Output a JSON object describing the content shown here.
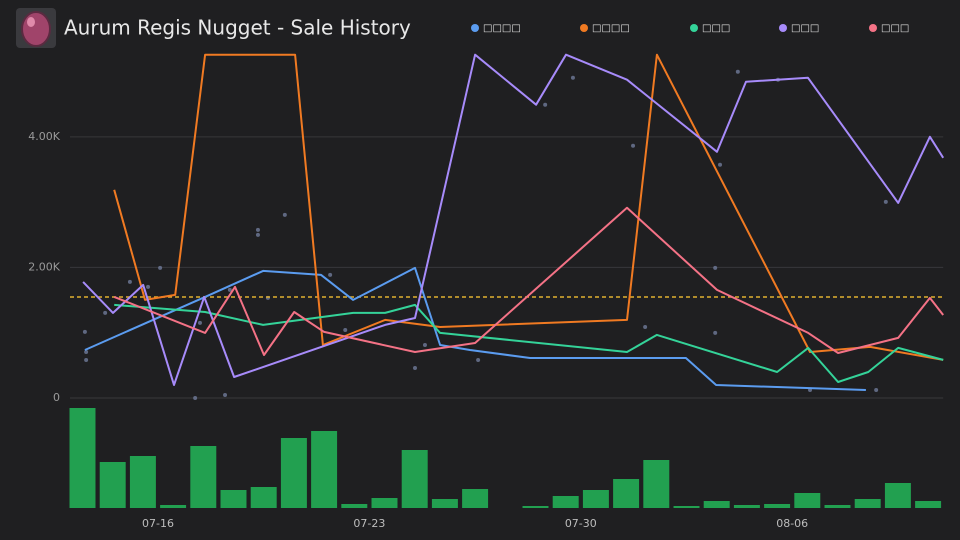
{
  "chart_data": {
    "type": "line",
    "title": "Aurum Regis Nugget - Sale History",
    "xlim": [
      0,
      29
    ],
    "xticks": [
      {
        "value": 3,
        "label": "07-16"
      },
      {
        "value": 10,
        "label": "07-23"
      },
      {
        "value": 17,
        "label": "07-30"
      },
      {
        "value": 24,
        "label": "08-06"
      }
    ],
    "ylim": [
      0,
      5300
    ],
    "yticks": [
      0,
      {
        "value": 2000,
        "label": "2.00K"
      },
      {
        "value": 4000,
        "label": "4.00K"
      }
    ],
    "grid": true,
    "series": [
      {
        "name": "□□□□",
        "color": "#5b9cf0",
        "x": [
          0.58,
          4.56,
          6.48,
          8.4,
          9.46,
          11.51,
          12.34,
          13.33,
          15.32,
          16.97,
          20.48,
          21.48,
          26.44
        ],
        "values": [
          736,
          1548,
          1947,
          1886,
          1502,
          1993,
          812,
          736,
          613,
          613,
          613,
          199,
          123
        ]
      },
      {
        "name": "□□□□",
        "color": "#f07a22",
        "x": [
          1.55,
          2.57,
          3.57,
          4.56,
          7.54,
          8.46,
          10.52,
          12.34,
          18.53,
          19.52,
          24.59,
          26.58,
          29
        ],
        "values": [
          3189,
          1502,
          1579,
          5258,
          5258,
          812,
          1196,
          1088,
          1196,
          5258,
          705,
          782,
          583
        ]
      },
      {
        "name": "□□□",
        "color": "#34d399",
        "x": [
          1.55,
          4.56,
          6.48,
          9.46,
          10.52,
          11.51,
          12.34,
          18.53,
          19.52,
          23.5,
          24.53,
          25.52,
          26.52,
          27.51,
          29
        ],
        "values": [
          1426,
          1318,
          1119,
          1303,
          1303,
          1426,
          997,
          705,
          966,
          399,
          767,
          245,
          399,
          767,
          583
        ]
      },
      {
        "name": "□□□",
        "color": "#a78bfa",
        "x": [
          0.52,
          1.51,
          2.51,
          3.53,
          4.53,
          5.52,
          10.52,
          11.51,
          13.5,
          15.52,
          16.51,
          18.53,
          21.51,
          22.47,
          24.52,
          27.51,
          28.56,
          29
        ],
        "values": [
          1778,
          1303,
          1732,
          199,
          1548,
          322,
          1119,
          1226,
          5258,
          4492,
          5258,
          4875,
          3771,
          4844,
          4906,
          2989,
          4001,
          3679
        ]
      },
      {
        "name": "□□□",
        "color": "#f47286",
        "x": [
          1.55,
          4.56,
          5.55,
          6.51,
          7.51,
          8.5,
          11.51,
          13.5,
          18.53,
          21.51,
          24.53,
          25.52,
          27.51,
          28.56,
          29
        ],
        "values": [
          1548,
          997,
          1702,
          659,
          1318,
          1012,
          705,
          843,
          2913,
          1656,
          997,
          690,
          920,
          1533,
          1272
        ]
      }
    ],
    "points": {
      "color": "#6f7a9a",
      "x": [
        0.58,
        0.62,
        0.62,
        1.25,
        2.07,
        2.67,
        3.07,
        4.23,
        4.39,
        5.22,
        5.38,
        6.31,
        6.31,
        6.64,
        7.2,
        8.7,
        9.2,
        11.51,
        11.84,
        13.6,
        15.82,
        16.74,
        18.73,
        19.13,
        21.45,
        21.45,
        21.61,
        22.2,
        23.53,
        24.59,
        26.78,
        27.1
      ],
      "values": [
        1012,
        705,
        583,
        1303,
        1778,
        1702,
        1993,
        0,
        1150,
        46,
        1656,
        2575,
        2499,
        1533,
        2805,
        1886,
        1042,
        460,
        812,
        583,
        4492,
        4906,
        3863,
        1088,
        1993,
        997,
        3572,
        4998,
        4875,
        123,
        123,
        3005
      ]
    },
    "reference": {
      "value": 1548,
      "color": "#e0b030"
    },
    "volume": {
      "color": "#22a050",
      "ylim": [
        0,
        100
      ],
      "x": [
        0.5,
        1.5,
        2.5,
        3.5,
        4.5,
        5.5,
        6.5,
        7.5,
        8.5,
        9.5,
        10.5,
        11.5,
        12.5,
        13.5,
        14.5,
        15.5,
        16.5,
        17.5,
        18.5,
        19.5,
        20.5,
        21.5,
        22.5,
        23.5,
        24.5,
        25.5,
        26.5,
        27.5,
        28.5
      ],
      "values": [
        100,
        46,
        52,
        3,
        62,
        18,
        21,
        70,
        77,
        4,
        10,
        58,
        9,
        19,
        0,
        2,
        12,
        18,
        29,
        48,
        2,
        7,
        3,
        4,
        15,
        3,
        9,
        25,
        7
      ]
    }
  }
}
